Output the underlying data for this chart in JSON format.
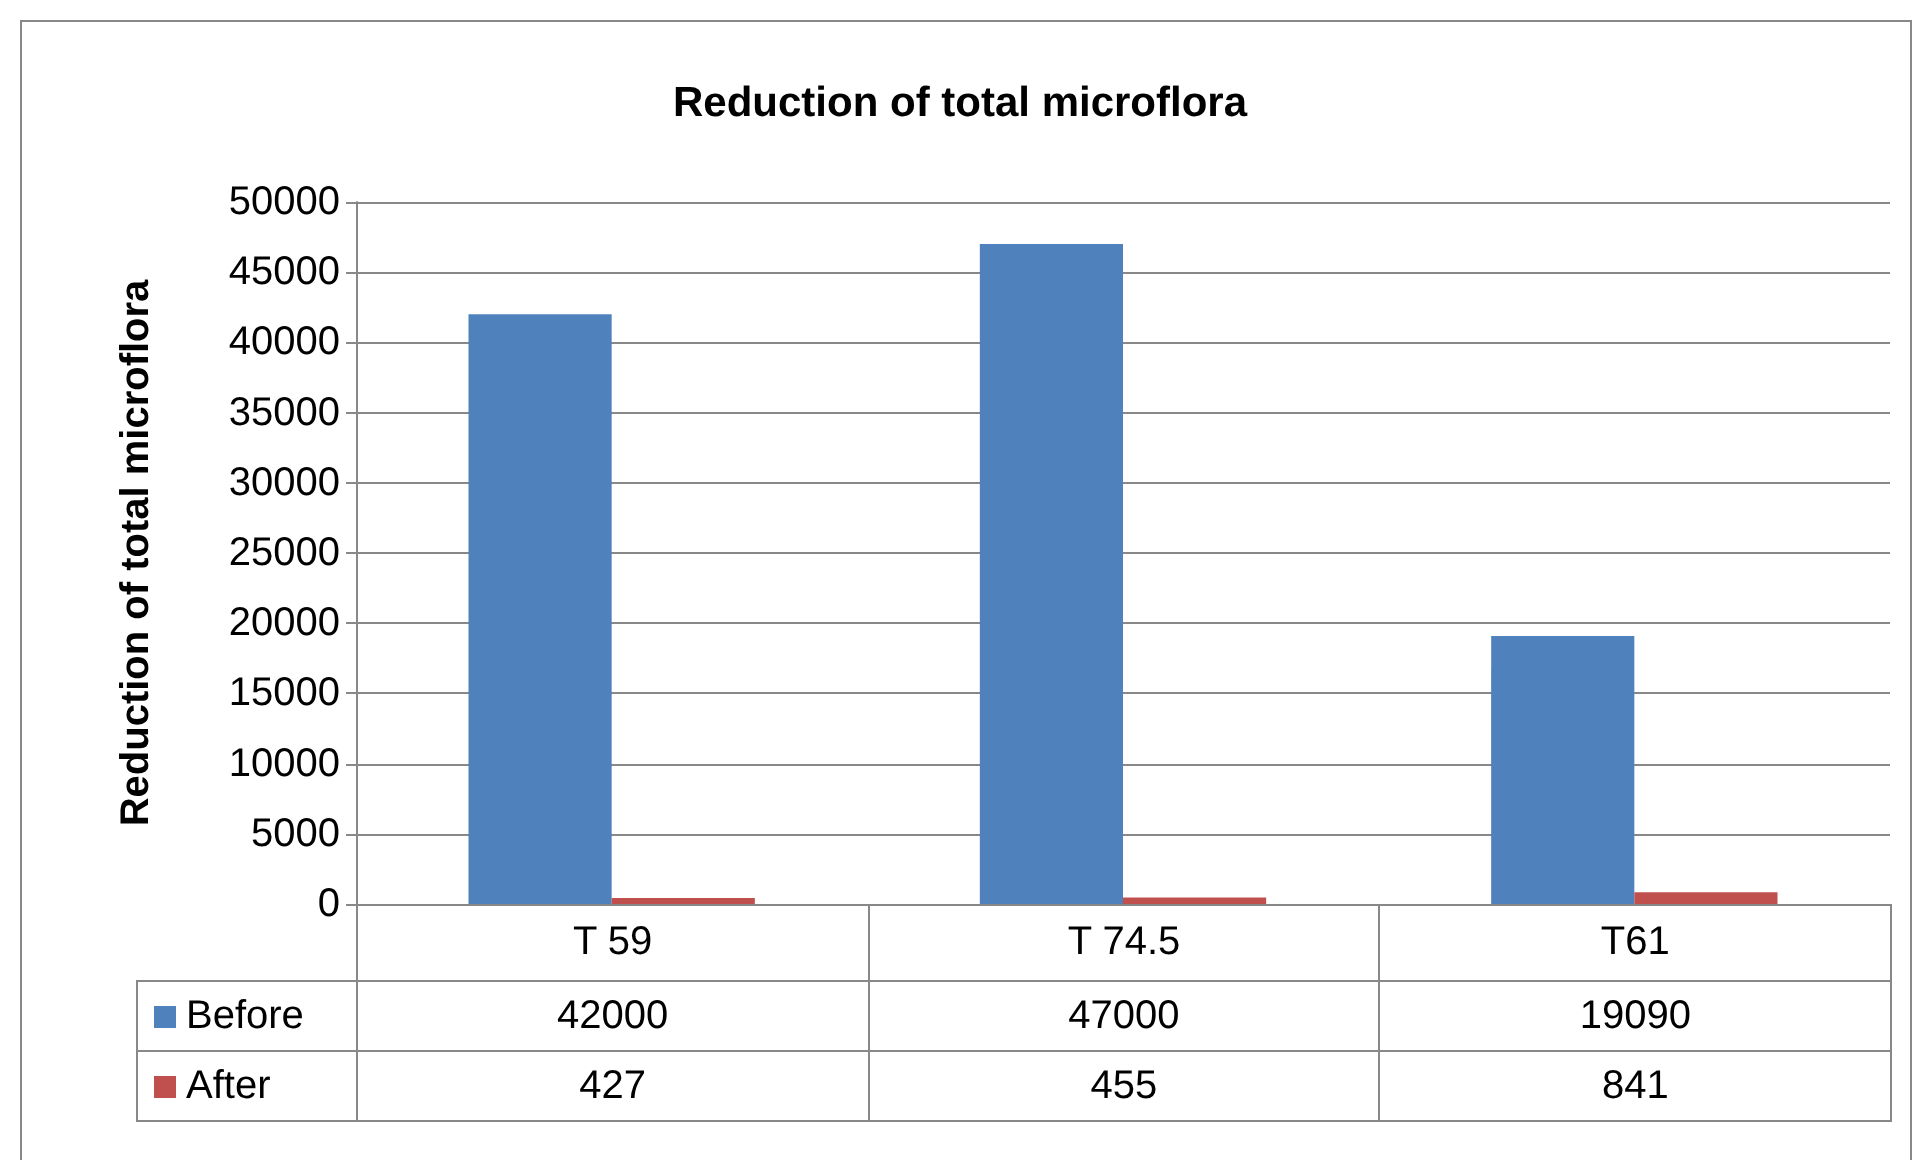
{
  "chart_data": {
    "type": "bar",
    "title": "Reduction of total microflora",
    "ylabel": "Reduction of total microflora",
    "categories": [
      "T 59",
      "T 74.5",
      "T61"
    ],
    "series": [
      {
        "name": "Before",
        "color": "#4f81bd",
        "values": [
          42000,
          47000,
          19090
        ]
      },
      {
        "name": "After",
        "color": "#c0504d",
        "values": [
          427,
          455,
          841
        ]
      }
    ],
    "ylim": [
      0,
      50000
    ],
    "yticks": [
      0,
      5000,
      10000,
      15000,
      20000,
      25000,
      30000,
      35000,
      40000,
      45000,
      50000
    ],
    "grid": "y",
    "legend": "bottom",
    "data_labels": true
  }
}
